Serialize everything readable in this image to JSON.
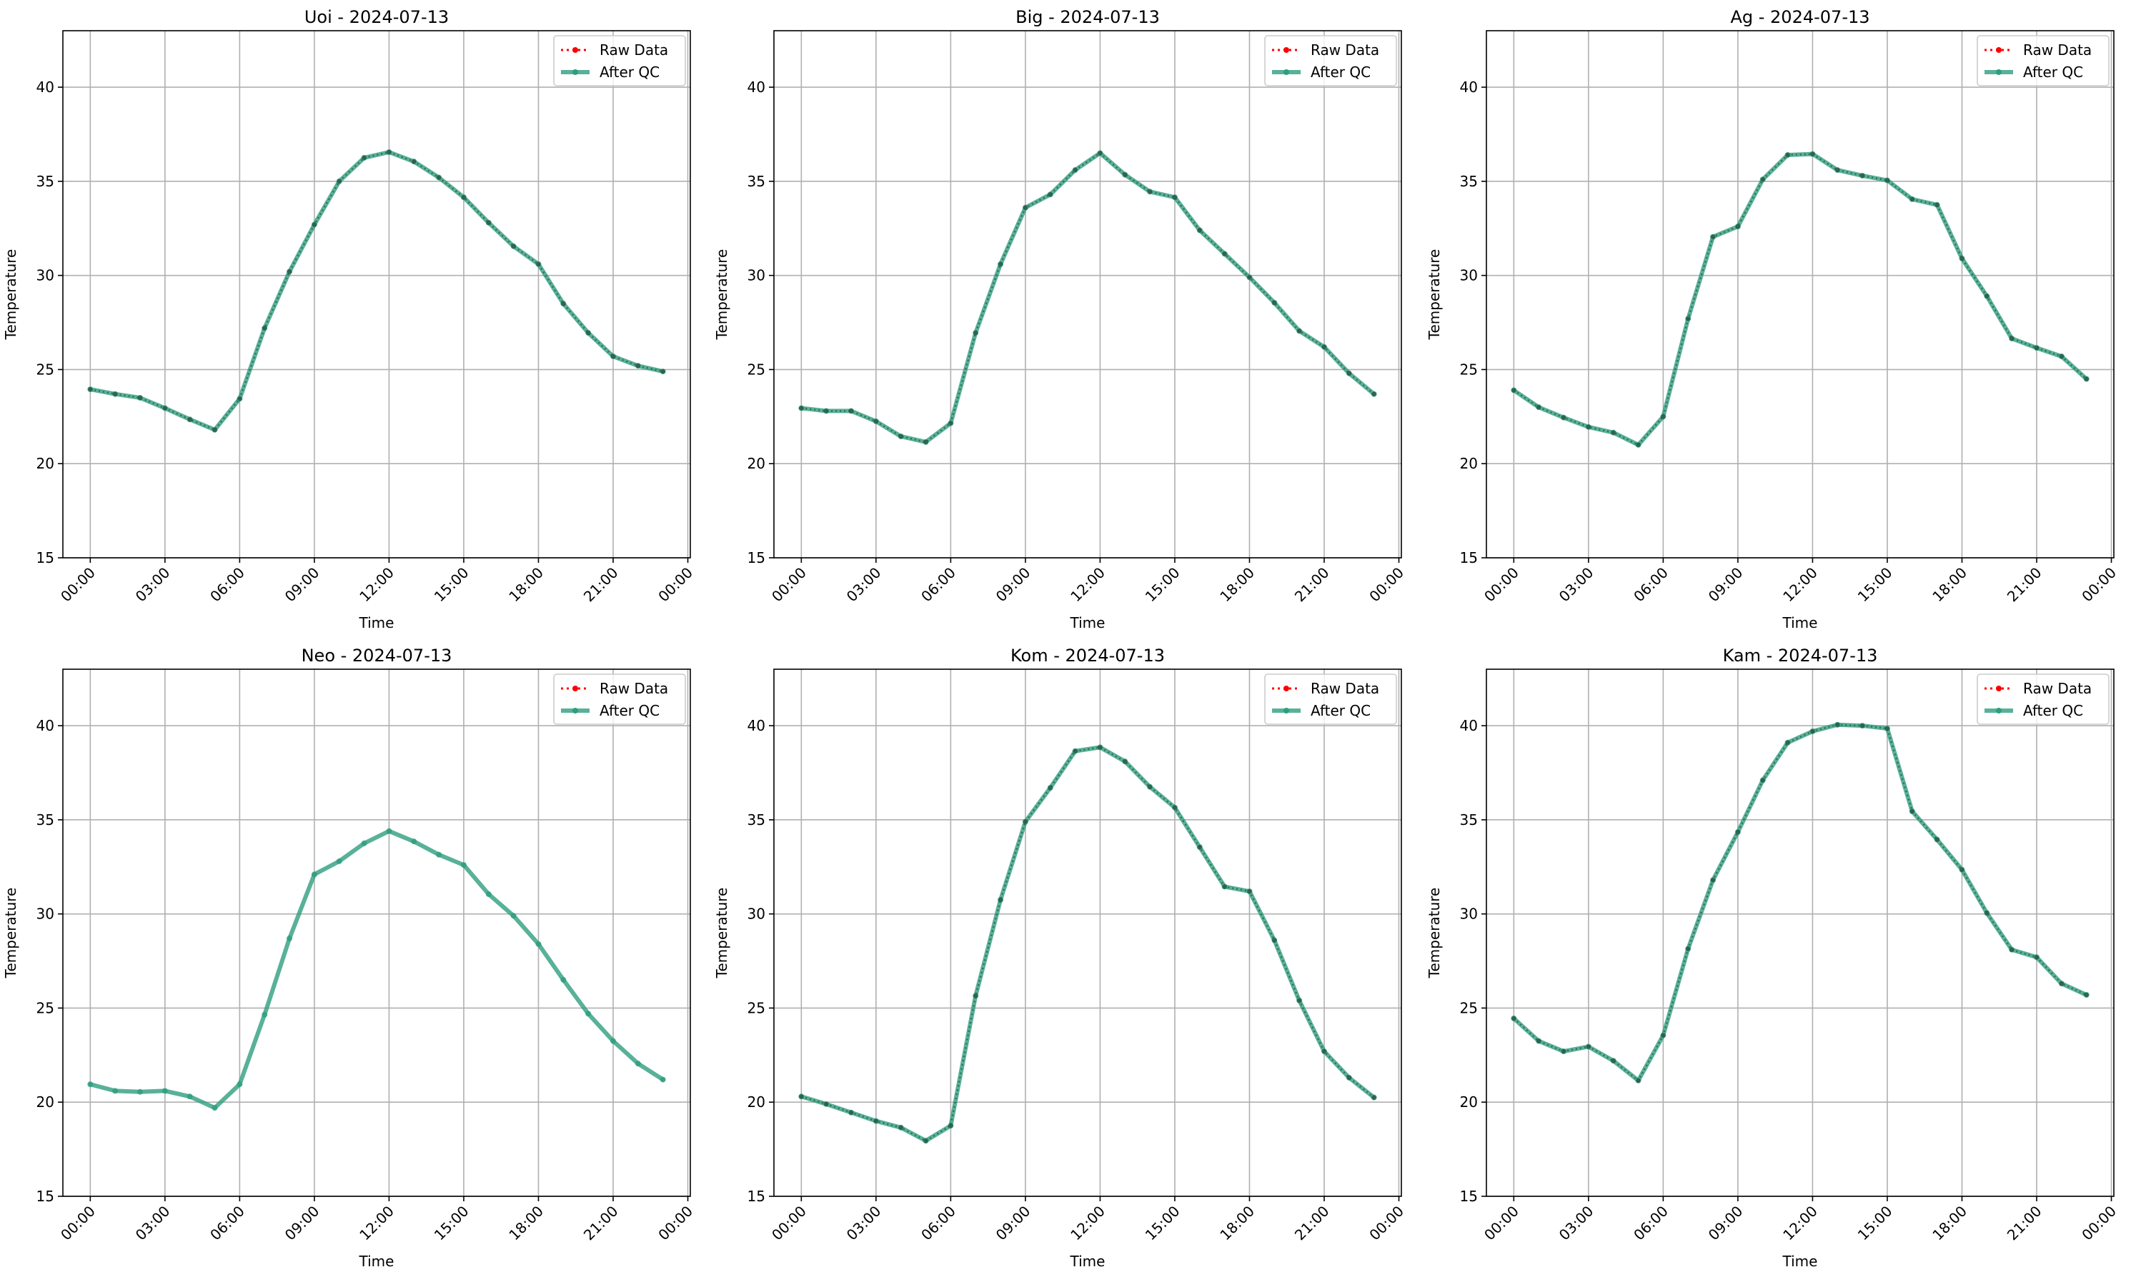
{
  "chart_data": [
    {
      "type": "line",
      "title": "Uoi - 2024-07-13",
      "xlabel": "Time",
      "ylabel": "Temperature",
      "ylim": [
        15,
        43
      ],
      "yticks": [
        15,
        20,
        25,
        30,
        35,
        40
      ],
      "xlim_hours": [
        -1.1,
        24.1
      ],
      "xtick_hours": [
        0,
        3,
        6,
        9,
        12,
        15,
        18,
        21,
        24
      ],
      "xtick_labels": [
        "00:00",
        "03:00",
        "06:00",
        "09:00",
        "12:00",
        "15:00",
        "18:00",
        "21:00",
        "00:00"
      ],
      "grid": true,
      "legend_position": "top-right",
      "x_hours": [
        0,
        1,
        2,
        3,
        4,
        5,
        6,
        7,
        8,
        9,
        10,
        11,
        12,
        13,
        14,
        15,
        16,
        17,
        18,
        19,
        20,
        21,
        22,
        23
      ],
      "series": [
        {
          "name": "Raw Data",
          "style": "dotted",
          "color": "#ff0000",
          "values": [
            23.95,
            23.7,
            23.5,
            22.95,
            22.35,
            21.8,
            23.45,
            27.2,
            30.2,
            32.7,
            35.0,
            36.25,
            36.55,
            36.05,
            35.2,
            34.15,
            32.8,
            31.55,
            30.6,
            28.5,
            26.95,
            25.7,
            25.2,
            24.9
          ]
        },
        {
          "name": "After QC",
          "style": "solid",
          "color": "#2e9e7e",
          "values": [
            23.95,
            23.7,
            23.5,
            22.95,
            22.35,
            21.8,
            23.45,
            27.2,
            30.2,
            32.7,
            35.0,
            36.25,
            36.55,
            36.05,
            35.2,
            34.15,
            32.8,
            31.55,
            30.6,
            28.5,
            26.95,
            25.7,
            25.2,
            24.9
          ]
        }
      ]
    },
    {
      "type": "line",
      "title": "Big - 2024-07-13",
      "xlabel": "Time",
      "ylabel": "Temperature",
      "ylim": [
        15,
        43
      ],
      "yticks": [
        15,
        20,
        25,
        30,
        35,
        40
      ],
      "xlim_hours": [
        -1.1,
        24.1
      ],
      "xtick_hours": [
        0,
        3,
        6,
        9,
        12,
        15,
        18,
        21,
        24
      ],
      "xtick_labels": [
        "00:00",
        "03:00",
        "06:00",
        "09:00",
        "12:00",
        "15:00",
        "18:00",
        "21:00",
        "00:00"
      ],
      "grid": true,
      "legend_position": "top-right",
      "x_hours": [
        0,
        1,
        2,
        3,
        4,
        5,
        6,
        7,
        8,
        9,
        10,
        11,
        12,
        13,
        14,
        15,
        16,
        17,
        18,
        19,
        20,
        21,
        22,
        23
      ],
      "series": [
        {
          "name": "Raw Data",
          "style": "dotted",
          "color": "#ff0000",
          "values": [
            22.95,
            22.8,
            22.8,
            22.25,
            21.45,
            21.15,
            22.15,
            26.95,
            30.6,
            33.6,
            34.3,
            35.6,
            36.5,
            35.35,
            34.45,
            34.15,
            32.4,
            31.15,
            29.9,
            28.55,
            27.05,
            26.2,
            24.8,
            23.7
          ]
        },
        {
          "name": "After QC",
          "style": "solid",
          "color": "#2e9e7e",
          "values": [
            22.95,
            22.8,
            22.8,
            22.25,
            21.45,
            21.15,
            22.15,
            26.95,
            30.6,
            33.6,
            34.3,
            35.6,
            36.5,
            35.35,
            34.45,
            34.15,
            32.4,
            31.15,
            29.9,
            28.55,
            27.05,
            26.2,
            24.8,
            23.7
          ]
        }
      ]
    },
    {
      "type": "line",
      "title": "Ag - 2024-07-13",
      "xlabel": "Time",
      "ylabel": "Temperature",
      "ylim": [
        15,
        43
      ],
      "yticks": [
        15,
        20,
        25,
        30,
        35,
        40
      ],
      "xlim_hours": [
        -1.1,
        24.1
      ],
      "xtick_hours": [
        0,
        3,
        6,
        9,
        12,
        15,
        18,
        21,
        24
      ],
      "xtick_labels": [
        "00:00",
        "03:00",
        "06:00",
        "09:00",
        "12:00",
        "15:00",
        "18:00",
        "21:00",
        "00:00"
      ],
      "grid": true,
      "legend_position": "top-right",
      "x_hours": [
        0,
        1,
        2,
        3,
        4,
        5,
        6,
        7,
        8,
        9,
        10,
        11,
        12,
        13,
        14,
        15,
        16,
        17,
        18,
        19,
        20,
        21,
        22,
        23
      ],
      "series": [
        {
          "name": "Raw Data",
          "style": "dotted",
          "color": "#ff0000",
          "values": [
            23.9,
            23.0,
            22.45,
            21.95,
            21.65,
            21.0,
            22.5,
            27.7,
            32.05,
            32.6,
            35.1,
            36.4,
            36.45,
            35.6,
            35.3,
            35.05,
            34.05,
            33.75,
            30.9,
            28.9,
            26.65,
            26.15,
            25.7,
            24.5
          ]
        },
        {
          "name": "After QC",
          "style": "solid",
          "color": "#2e9e7e",
          "values": [
            23.9,
            23.0,
            22.45,
            21.95,
            21.65,
            21.0,
            22.5,
            27.7,
            32.05,
            32.6,
            35.1,
            36.4,
            36.45,
            35.6,
            35.3,
            35.05,
            34.05,
            33.75,
            30.9,
            28.9,
            26.65,
            26.15,
            25.7,
            24.5
          ]
        }
      ]
    },
    {
      "type": "line",
      "title": "Neo - 2024-07-13",
      "xlabel": "Time",
      "ylabel": "Temperature",
      "ylim": [
        15,
        43
      ],
      "yticks": [
        15,
        20,
        25,
        30,
        35,
        40
      ],
      "xlim_hours": [
        -1.1,
        24.1
      ],
      "xtick_hours": [
        0,
        3,
        6,
        9,
        12,
        15,
        18,
        21,
        24
      ],
      "xtick_labels": [
        "00:00",
        "03:00",
        "06:00",
        "09:00",
        "12:00",
        "15:00",
        "18:00",
        "21:00",
        "00:00"
      ],
      "grid": true,
      "legend_position": "top-right",
      "x_hours": [
        0,
        1,
        2,
        3,
        4,
        5,
        6,
        7,
        8,
        9,
        10,
        11,
        12,
        13,
        14,
        15,
        16,
        17,
        18,
        19,
        20,
        21,
        22,
        23
      ],
      "series": [
        {
          "name": "Raw Data",
          "style": "dotted",
          "color": "#ff0000",
          "values": [
            20.95,
            20.6,
            20.55,
            20.6,
            20.3,
            19.7,
            20.95,
            24.65,
            28.7,
            32.1,
            32.8,
            33.75,
            34.4,
            33.85,
            33.15,
            32.6,
            31.05,
            29.9,
            28.4,
            26.5,
            24.7,
            23.25,
            22.05,
            21.2
          ]
        },
        {
          "name": "After QC",
          "style": "solid",
          "color": "#2e9e7e",
          "values": [
            20.95,
            20.6,
            20.55,
            20.6,
            20.3,
            19.7,
            20.95,
            24.65,
            28.7,
            32.1,
            32.8,
            33.75,
            34.4,
            33.85,
            33.15,
            32.6,
            31.05,
            29.9,
            28.4,
            26.5,
            24.7,
            23.25,
            22.05,
            21.2
          ]
        }
      ]
    },
    {
      "type": "line",
      "title": "Kom - 2024-07-13",
      "xlabel": "Time",
      "ylabel": "Temperature",
      "ylim": [
        15,
        43
      ],
      "yticks": [
        15,
        20,
        25,
        30,
        35,
        40
      ],
      "xlim_hours": [
        -1.1,
        24.1
      ],
      "xtick_hours": [
        0,
        3,
        6,
        9,
        12,
        15,
        18,
        21,
        24
      ],
      "xtick_labels": [
        "00:00",
        "03:00",
        "06:00",
        "09:00",
        "12:00",
        "15:00",
        "18:00",
        "21:00",
        "00:00"
      ],
      "grid": true,
      "legend_position": "top-right",
      "x_hours": [
        0,
        1,
        2,
        3,
        4,
        5,
        6,
        7,
        8,
        9,
        10,
        11,
        12,
        13,
        14,
        15,
        16,
        17,
        18,
        19,
        20,
        21,
        22,
        23
      ],
      "series": [
        {
          "name": "Raw Data",
          "style": "dotted",
          "color": "#ff0000",
          "values": [
            20.3,
            19.9,
            19.45,
            19.0,
            18.65,
            17.95,
            18.75,
            25.65,
            30.75,
            34.9,
            36.7,
            38.65,
            38.85,
            38.1,
            36.75,
            35.65,
            33.55,
            31.45,
            31.2,
            28.6,
            25.4,
            22.7,
            21.3,
            20.25
          ]
        },
        {
          "name": "After QC",
          "style": "solid",
          "color": "#2e9e7e",
          "values": [
            20.3,
            19.9,
            19.45,
            19.0,
            18.65,
            17.95,
            18.75,
            25.65,
            30.75,
            34.9,
            36.7,
            38.65,
            38.85,
            38.1,
            36.75,
            35.65,
            33.55,
            31.45,
            31.2,
            28.6,
            25.4,
            22.7,
            21.3,
            20.25
          ]
        }
      ]
    },
    {
      "type": "line",
      "title": "Kam - 2024-07-13",
      "xlabel": "Time",
      "ylabel": "Temperature",
      "ylim": [
        15,
        43
      ],
      "yticks": [
        15,
        20,
        25,
        30,
        35,
        40
      ],
      "xlim_hours": [
        -1.1,
        24.1
      ],
      "xtick_hours": [
        0,
        3,
        6,
        9,
        12,
        15,
        18,
        21,
        24
      ],
      "xtick_labels": [
        "00:00",
        "03:00",
        "06:00",
        "09:00",
        "12:00",
        "15:00",
        "18:00",
        "21:00",
        "00:00"
      ],
      "grid": true,
      "legend_position": "top-right",
      "x_hours": [
        0,
        1,
        2,
        3,
        4,
        5,
        6,
        7,
        8,
        9,
        10,
        11,
        12,
        13,
        14,
        15,
        16,
        17,
        18,
        19,
        20,
        21,
        22,
        23
      ],
      "series": [
        {
          "name": "Raw Data",
          "style": "dotted",
          "color": "#ff0000",
          "values": [
            24.45,
            23.25,
            22.7,
            22.95,
            22.2,
            21.15,
            23.55,
            28.15,
            31.8,
            34.35,
            37.1,
            39.1,
            39.7,
            40.05,
            40.0,
            39.85,
            35.45,
            33.95,
            32.35,
            30.05,
            28.1,
            27.7,
            26.3,
            25.7
          ]
        },
        {
          "name": "After QC",
          "style": "solid",
          "color": "#2e9e7e",
          "values": [
            24.45,
            23.25,
            22.7,
            22.95,
            22.2,
            21.15,
            23.55,
            28.15,
            31.8,
            34.35,
            37.1,
            39.1,
            39.7,
            40.05,
            40.0,
            39.85,
            35.45,
            33.95,
            32.35,
            30.05,
            28.1,
            27.7,
            26.3,
            25.7
          ]
        }
      ]
    }
  ]
}
